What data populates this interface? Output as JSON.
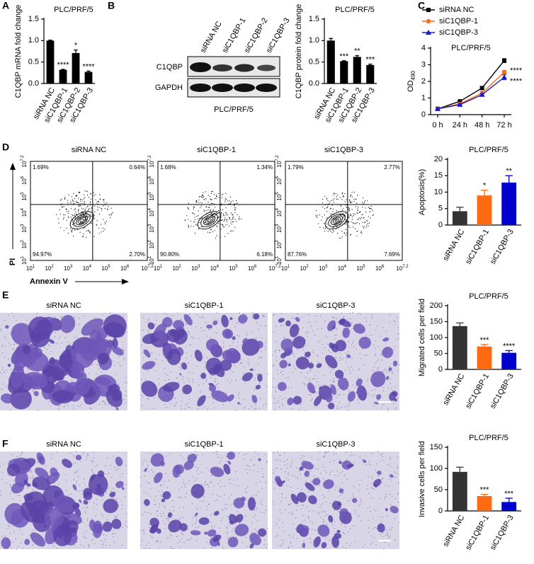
{
  "panel_labels": [
    "A",
    "B",
    "C",
    "D",
    "E",
    "F"
  ],
  "blot": {
    "lanes": [
      "siRNA NC",
      "siC1QBP-1",
      "siC1QBP-2",
      "siC1QBP-3"
    ],
    "rows": [
      "C1QBP",
      "GAPDH"
    ],
    "caption": "PLC/PRF/5"
  },
  "flow": {
    "x_label": "Annexin V",
    "y_label": "PI",
    "tick_base": "10",
    "tick_exponents": [
      "1",
      "2",
      "3",
      "4",
      "5",
      "6",
      "7.2"
    ],
    "panels": [
      {
        "title": "siRNA NC",
        "quadrants": [
          "1.69%",
          "0.64%",
          "94.97%",
          "2.70%"
        ]
      },
      {
        "title": "siC1QBP-1",
        "quadrants": [
          "1.68%",
          "1.34%",
          "90.80%",
          "6.18%"
        ]
      },
      {
        "title": "siC1QBP-3",
        "quadrants": [
          "1.79%",
          "2.77%",
          "87.76%",
          "7.69%"
        ]
      }
    ]
  },
  "micrographs": {
    "migration": [
      "siRNA NC",
      "siC1QBP-1",
      "siC1QBP-3"
    ],
    "invasion": [
      "siRNA NC",
      "siC1QBP-1",
      "siC1QBP-3"
    ]
  },
  "chart_data": [
    {
      "type": "bar",
      "title": "PLC/PRF/5",
      "y_label": "C1QBP mRNA fold change",
      "categories": [
        "siRNA NC",
        "siC1QBP-1",
        "siC1QBP-2",
        "siC1QBP-3"
      ],
      "values": [
        1.0,
        0.32,
        0.71,
        0.27
      ],
      "errors": [
        0.01,
        0.01,
        0.07,
        0.02
      ],
      "significance": [
        null,
        "****",
        "*",
        "****"
      ],
      "color": "#000000",
      "ylim": [
        0,
        1.5
      ],
      "yticks": [
        {
          "value": 0,
          "label": "0.0"
        },
        0.5,
        {
          "value": 1,
          "label": "1.0"
        },
        1.5
      ]
    },
    {
      "type": "bar",
      "title": "PLC/PRF/5",
      "y_label": "C1QBP protein fold change",
      "categories": [
        "siRNA NC",
        "siC1QBP-1",
        "siC1QBP-2",
        "siC1QBP-3"
      ],
      "values": [
        1.0,
        0.52,
        0.62,
        0.43
      ],
      "errors": [
        0.05,
        0.01,
        0.03,
        0.02
      ],
      "significance": [
        null,
        "***",
        "**",
        "***"
      ],
      "color": "#000000",
      "ylim": [
        0,
        1.5
      ],
      "yticks": [
        {
          "value": 0,
          "label": "0.0"
        },
        0.5,
        {
          "value": 1,
          "label": "1.0"
        },
        1.5
      ]
    },
    {
      "type": "line",
      "title": "PLC/PRF/5",
      "y_label": "OD",
      "y_label_subscript": "490",
      "categories": [
        "0 h",
        "24 h",
        "48 h",
        "72 h"
      ],
      "series": [
        {
          "name": "siRNA NC",
          "color": "#000000",
          "marker": "square",
          "values": [
            0.35,
            0.8,
            1.6,
            3.25
          ],
          "errors": [
            0.03,
            0.05,
            0.08,
            0.12
          ]
        },
        {
          "name": "siC1QBP-1",
          "color": "#ff6a13",
          "marker": "circle",
          "values": [
            0.35,
            0.65,
            1.3,
            2.55
          ],
          "errors": [
            0.03,
            0.04,
            0.07,
            0.12
          ],
          "significance": "****"
        },
        {
          "name": "siC1QBP-3",
          "color": "#1a1acc",
          "marker": "triangle",
          "values": [
            0.35,
            0.6,
            1.2,
            2.25
          ],
          "errors": [
            0.03,
            0.04,
            0.06,
            0.15
          ],
          "significance": "****"
        }
      ],
      "ylim": [
        0,
        4
      ],
      "yticks": [
        0,
        1,
        2,
        3,
        4
      ],
      "legend": "top-left"
    },
    {
      "type": "bar",
      "title": "PLC/PRF/5",
      "y_label": "Apoptosis(%)",
      "categories": [
        "siRNA NC",
        "siC1QBP-1",
        "siC1QBP-3"
      ],
      "values": [
        4.2,
        9.0,
        12.9
      ],
      "errors": [
        1.2,
        1.6,
        2.1
      ],
      "significance": [
        null,
        "*",
        "**"
      ],
      "colors": [
        "#333333",
        "#ff6a13",
        "#0000cc"
      ],
      "ylim": [
        0,
        20
      ],
      "yticks": [
        0,
        5,
        10,
        15,
        20
      ]
    },
    {
      "type": "bar",
      "title": "PLC/PRF/5",
      "y_label": "Migrated cells per field",
      "categories": [
        "siRNA NC",
        "siC1QBP-1",
        "siC1QBP-3"
      ],
      "values": [
        136,
        72,
        52
      ],
      "errors": [
        10,
        6,
        7
      ],
      "significance": [
        null,
        "***",
        "****"
      ],
      "colors": [
        "#333333",
        "#ff6a13",
        "#0000cc"
      ],
      "ylim": [
        0,
        200
      ],
      "yticks": [
        0,
        50,
        100,
        150,
        200
      ]
    },
    {
      "type": "bar",
      "title": "PLC/PRF/5",
      "y_label": "Invasive cells per field",
      "categories": [
        "siRNA NC",
        "siC1QBP-1",
        "siC1QBP-3"
      ],
      "values": [
        92,
        35,
        21
      ],
      "errors": [
        11,
        4,
        9
      ],
      "significance": [
        null,
        "***",
        "***"
      ],
      "colors": [
        "#333333",
        "#ff6a13",
        "#0000cc"
      ],
      "ylim": [
        0,
        150
      ],
      "yticks": [
        0,
        50,
        100,
        150
      ]
    }
  ]
}
